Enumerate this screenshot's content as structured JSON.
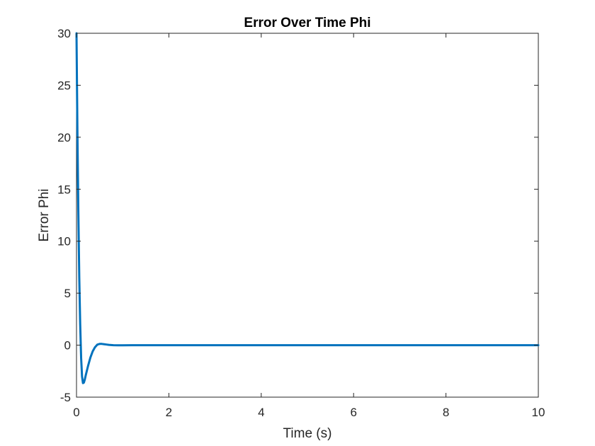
{
  "chart_data": {
    "type": "line",
    "title": "Error Over Time Phi",
    "xlabel": "Time (s)",
    "ylabel": "Error Phi",
    "xlim": [
      0,
      10
    ],
    "ylim": [
      -5,
      30
    ],
    "xticks": [
      0,
      2,
      4,
      6,
      8,
      10
    ],
    "yticks": [
      -5,
      0,
      5,
      10,
      15,
      20,
      25,
      30
    ],
    "grid": false,
    "legend": "none",
    "series": [
      {
        "color": "#0072BD",
        "x": [
          0,
          0.02,
          0.04,
          0.06,
          0.08,
          0.1,
          0.12,
          0.14,
          0.16,
          0.18,
          0.2,
          0.25,
          0.3,
          0.35,
          0.4,
          0.45,
          0.5,
          0.55,
          0.6,
          0.65,
          0.7,
          0.8,
          0.9,
          1.0,
          1.2,
          1.5,
          2,
          3,
          4,
          5,
          6,
          7,
          8,
          9,
          10
        ],
        "y": [
          30,
          20.5,
          12.8,
          6.5,
          2.0,
          -1.2,
          -3.0,
          -3.65,
          -3.6,
          -3.3,
          -2.9,
          -2.0,
          -1.2,
          -0.6,
          -0.2,
          0.05,
          0.12,
          0.12,
          0.09,
          0.06,
          0.03,
          0.0,
          -0.01,
          -0.01,
          0,
          0,
          0,
          0,
          0,
          0,
          0,
          0,
          0,
          0,
          0
        ]
      }
    ]
  }
}
